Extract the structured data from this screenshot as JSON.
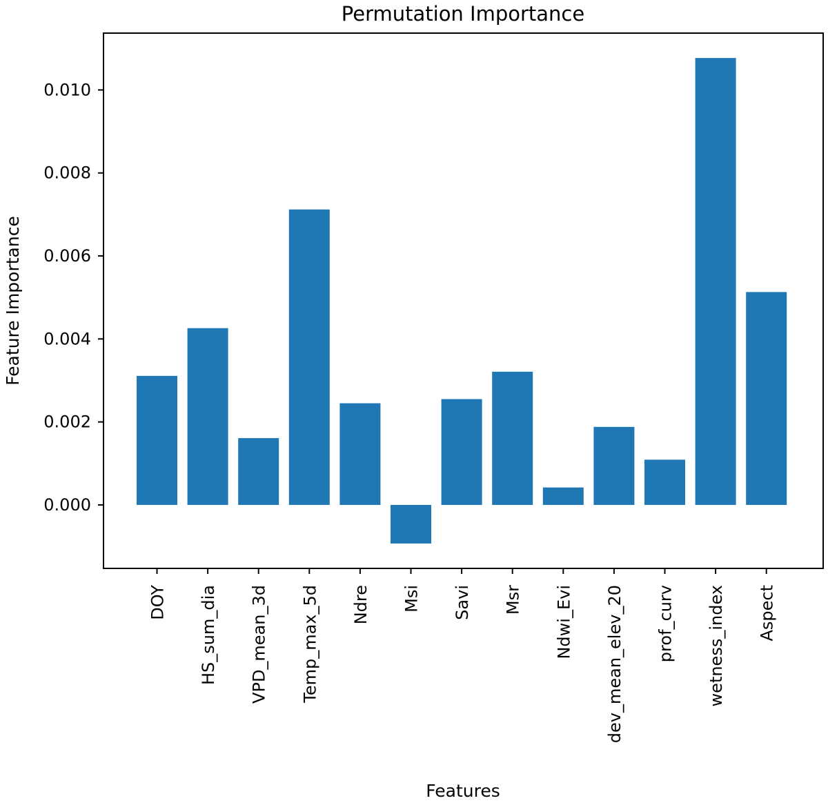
{
  "chart_data": {
    "type": "bar",
    "title": "Permutation Importance",
    "xlabel": "Features",
    "ylabel": "Feature Importance",
    "categories": [
      "DOY",
      "HS_sum_dia",
      "VPD_mean_3d",
      "Temp_max_5d",
      "Ndre",
      "Msi",
      "Savi",
      "Msr",
      "Ndwi_Evi",
      "dev_mean_elev_20",
      "prof_curv",
      "wetness_index",
      "Aspect"
    ],
    "values": [
      0.00311,
      0.00426,
      0.00161,
      0.00712,
      0.00245,
      -0.00093,
      0.00255,
      0.00321,
      0.00042,
      0.00188,
      0.00109,
      0.01077,
      0.00513
    ],
    "ylim": [
      -0.00153,
      0.01137
    ],
    "yticks": [
      0.0,
      0.002,
      0.004,
      0.006,
      0.008,
      0.01
    ],
    "ytick_labels": [
      "0.000",
      "0.002",
      "0.004",
      "0.006",
      "0.008",
      "0.010"
    ],
    "bar_color": "#1f77b4",
    "grid": false,
    "legend": false
  }
}
